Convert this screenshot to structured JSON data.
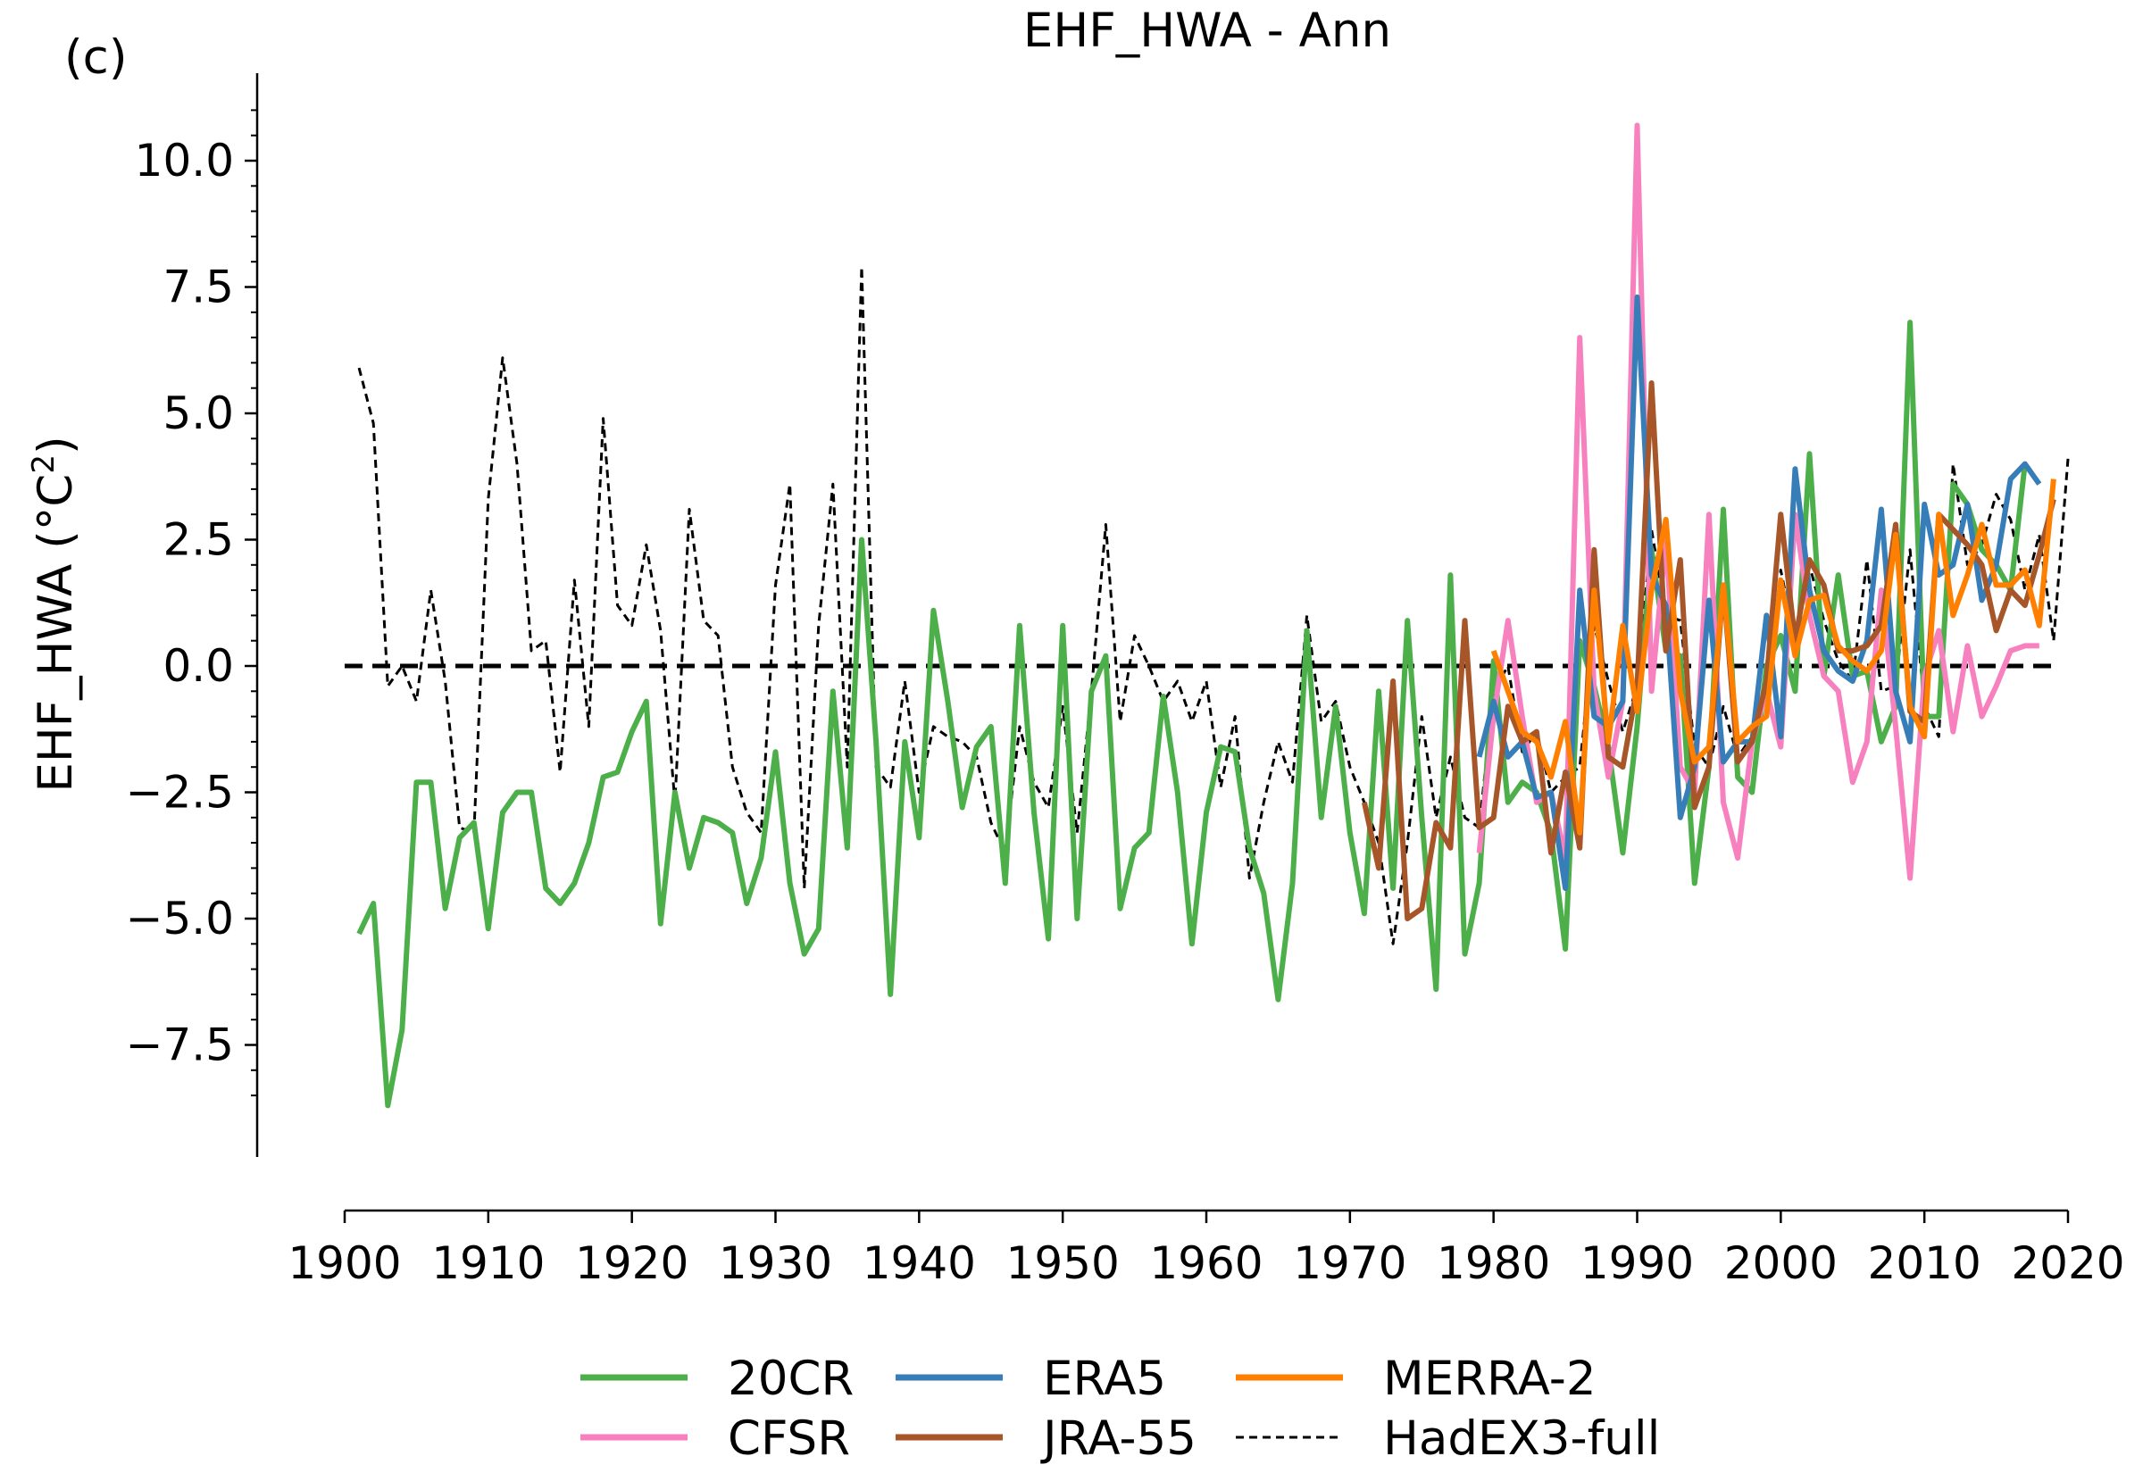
{
  "panel_label": "(c)",
  "chart_data": {
    "type": "line",
    "title": "EHF_HWA - Ann",
    "ylabel": "EHF_HWA (°C²)",
    "ylabel_main": "EHF_HWA (°C",
    "ylabel_sup": "2",
    "ylabel_end": ")",
    "xlabel": "",
    "xlim": [
      1899,
      2020
    ],
    "ylim": [
      -9.3,
      11.7
    ],
    "xticks": [
      1900,
      1910,
      1920,
      1930,
      1940,
      1950,
      1960,
      1970,
      1980,
      1990,
      2000,
      2010,
      2020
    ],
    "yticks": [
      -7.5,
      -5.0,
      -2.5,
      0.0,
      2.5,
      5.0,
      7.5,
      10.0
    ],
    "ytick_labels": [
      "−7.5",
      "−5.0",
      "−2.5",
      "0.0",
      "2.5",
      "5.0",
      "7.5",
      "10.0"
    ],
    "reference_line": 0,
    "grid": false,
    "legend_position": "bottom-center",
    "series": [
      {
        "name": "20CR",
        "color": "#4daf4a",
        "style": "solid",
        "start_year": 1901,
        "values": [
          -5.3,
          -4.7,
          -8.7,
          -7.2,
          -2.3,
          -2.3,
          -4.8,
          -3.4,
          -3.1,
          -5.2,
          -2.9,
          -2.5,
          -2.5,
          -4.4,
          -4.7,
          -4.3,
          -3.5,
          -2.2,
          -2.1,
          -1.3,
          -0.7,
          -5.1,
          -2.5,
          -4.0,
          -3.0,
          -3.1,
          -3.3,
          -4.7,
          -3.8,
          -1.7,
          -4.3,
          -5.7,
          -5.2,
          -0.5,
          -3.6,
          2.5,
          -1.5,
          -6.5,
          -1.5,
          -3.4,
          1.1,
          -0.7,
          -2.8,
          -1.6,
          -1.2,
          -4.3,
          0.8,
          -2.9,
          -5.4,
          0.8,
          -5.0,
          -0.5,
          0.2,
          -4.8,
          -3.6,
          -3.3,
          -0.6,
          -2.5,
          -5.5,
          -2.9,
          -1.6,
          -1.7,
          -3.6,
          -4.5,
          -6.6,
          -4.3,
          0.7,
          -3.0,
          -0.8,
          -3.3,
          -4.9,
          -0.5,
          -4.4,
          0.9,
          -3.0,
          -6.4,
          1.8,
          -5.7,
          -4.3,
          0.1,
          -2.7,
          -2.3,
          -2.5,
          -3.3,
          -5.6,
          0.5,
          -0.4,
          -1.6,
          -3.7,
          -1.2,
          2.3,
          0.3,
          0.2,
          -4.3,
          -2.0,
          3.1,
          -2.2,
          -2.5,
          0.0,
          0.6,
          -0.5,
          4.2,
          -0.2,
          1.8,
          -0.2,
          -0.1,
          -1.5,
          -0.8,
          6.8,
          -1.0,
          -1.0,
          3.6,
          3.2,
          2.3,
          2.0,
          1.5,
          4.0
        ]
      },
      {
        "name": "CFSR",
        "color": "#f781bf",
        "style": "solid",
        "start_year": 1979,
        "values": [
          -3.7,
          -1.0,
          0.9,
          -1.0,
          -2.7,
          -2.5,
          -3.8,
          6.5,
          -0.5,
          -2.2,
          -0.7,
          10.7,
          -0.5,
          2.5,
          -2.0,
          -2.5,
          3.0,
          -2.7,
          -3.8,
          -1.5,
          -0.5,
          -1.6,
          3.0,
          1.0,
          -0.2,
          -0.5,
          -2.3,
          -1.5,
          1.5,
          -1.2,
          -4.2,
          -0.2,
          0.7,
          -1.3,
          0.4,
          -1.0,
          -0.4,
          0.3,
          0.4,
          0.4
        ]
      },
      {
        "name": "ERA5",
        "color": "#377eb8",
        "style": "solid",
        "start_year": 1979,
        "values": [
          -1.8,
          -0.7,
          -1.8,
          -1.5,
          -2.6,
          -2.5,
          -4.4,
          1.5,
          -1.0,
          -1.2,
          -0.7,
          7.3,
          1.8,
          1.2,
          -3.0,
          -2.0,
          1.3,
          -1.9,
          -1.5,
          -1.5,
          1.0,
          -1.4,
          3.9,
          1.5,
          0.3,
          -0.1,
          -0.3,
          0.5,
          3.1,
          -0.5,
          -1.5,
          3.2,
          1.8,
          2.0,
          3.2,
          1.3,
          2.0,
          3.7,
          4.0,
          3.6
        ]
      },
      {
        "name": "JRA-55",
        "color": "#a65628",
        "style": "solid",
        "start_year": 1971,
        "values": [
          -2.7,
          -4.0,
          -0.3,
          -5.0,
          -4.8,
          -3.1,
          -3.6,
          0.9,
          -3.2,
          -3.0,
          -0.8,
          -1.5,
          -1.3,
          -3.7,
          -2.1,
          -3.6,
          2.3,
          -1.8,
          -2.0,
          -0.4,
          5.6,
          0.3,
          2.1,
          -2.8,
          -2.0,
          1.6,
          -1.9,
          -1.5,
          -0.3,
          3.0,
          0.5,
          2.1,
          1.6,
          0.3,
          0.3,
          0.4,
          0.8,
          2.8,
          -0.9,
          -1.1,
          3.0,
          2.7,
          2.4,
          2.0,
          0.7,
          1.5,
          1.2,
          2.2,
          3.3
        ]
      },
      {
        "name": "MERRA-2",
        "color": "#ff7f00",
        "style": "solid",
        "start_year": 1980,
        "values": [
          0.3,
          -0.5,
          -1.3,
          -1.5,
          -2.2,
          -1.1,
          -3.3,
          1.5,
          -1.5,
          0.8,
          -0.9,
          1.5,
          2.9,
          -0.5,
          -1.9,
          -1.6,
          1.6,
          -1.5,
          -1.2,
          -1.0,
          1.7,
          0.2,
          1.3,
          1.4,
          0.4,
          0.1,
          -0.1,
          0.3,
          2.6,
          -0.8,
          -1.4,
          3.0,
          1.0,
          1.8,
          2.8,
          1.6,
          1.6,
          1.9,
          0.8,
          3.7
        ]
      },
      {
        "name": "HadEX3-full",
        "color": "#000000",
        "style": "dashed",
        "start_year": 1901,
        "values": [
          5.9,
          4.8,
          -0.4,
          0.0,
          -0.7,
          1.5,
          -0.3,
          -3.2,
          -3.3,
          3.3,
          6.1,
          4.0,
          0.3,
          0.5,
          -2.1,
          1.7,
          -1.2,
          4.9,
          1.2,
          0.8,
          2.4,
          0.7,
          -2.7,
          3.1,
          0.9,
          0.6,
          -2.0,
          -2.9,
          -3.3,
          1.6,
          3.6,
          -4.4,
          0.8,
          3.6,
          -2.0,
          7.9,
          -2.0,
          -2.4,
          -0.3,
          -2.5,
          -1.2,
          -1.4,
          -1.5,
          -1.8,
          -3.1,
          -3.7,
          -1.2,
          -2.3,
          -2.8,
          -0.8,
          -3.3,
          -0.5,
          2.8,
          -1.1,
          0.6,
          0.0,
          -0.7,
          -0.3,
          -1.1,
          -0.3,
          -2.4,
          -1.0,
          -4.2,
          -2.7,
          -1.5,
          -2.3,
          1.0,
          -1.1,
          -0.7,
          -2.0,
          -2.7,
          -3.5,
          -5.5,
          -3.5,
          -1.0,
          -3.0,
          -1.8,
          -3.0,
          -3.2,
          -0.5,
          0.0,
          -1.7,
          -1.3,
          -2.5,
          -2.2,
          -2.0,
          0.8,
          -0.3,
          -1.3,
          -0.4,
          2.7,
          1.0,
          0.9,
          -1.6,
          -2.0,
          -0.8,
          -1.8,
          -1.4,
          -1.0,
          1.9,
          0.5,
          2.0,
          0.9,
          0.1,
          -0.3,
          2.1,
          -0.5,
          -0.4,
          2.3,
          -0.8,
          -1.4,
          4.0,
          2.0,
          2.4,
          3.4,
          2.9,
          1.5,
          2.6,
          0.5,
          4.1
        ]
      }
    ],
    "legend_layout": [
      [
        {
          "series": "20CR"
        },
        {
          "series": "ERA5"
        },
        {
          "series": "MERRA-2"
        }
      ],
      [
        {
          "series": "CFSR"
        },
        {
          "series": "JRA-55"
        },
        {
          "series": "HadEX3-full"
        }
      ]
    ]
  }
}
